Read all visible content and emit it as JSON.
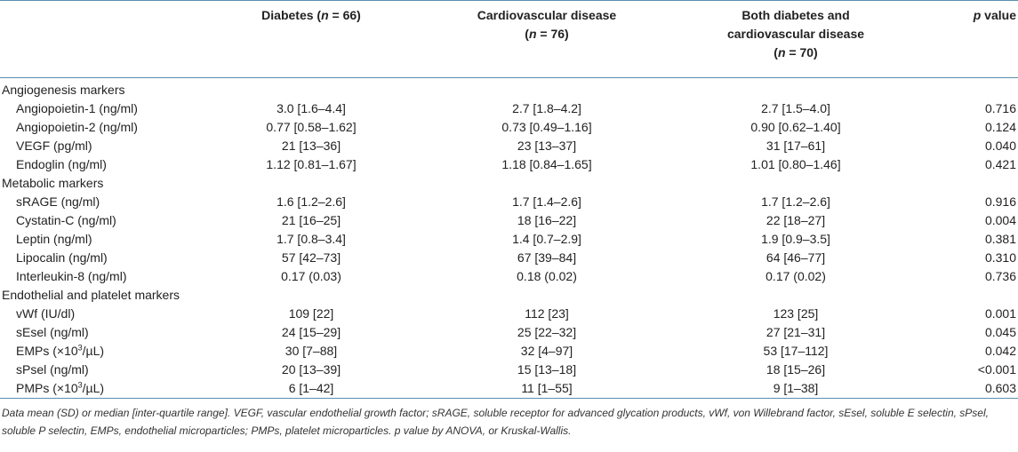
{
  "columns": {
    "diabetes_label": "Diabetes (",
    "diabetes_n": "n",
    "diabetes_count": " = 66)",
    "cvd_label": "Cardiovascular disease",
    "cvd_n": "n",
    "cvd_count": " = 76)",
    "both_line1": "Both diabetes and",
    "both_line2": "cardiovascular disease",
    "both_n": "n",
    "both_count": " = 70)",
    "p_letter": "p",
    "p_rest": " value"
  },
  "sections": [
    {
      "title": "Angiogenesis markers",
      "rows": [
        {
          "label": "Angiopoietin-1 (ng/ml)",
          "diabetes": "3.0 [1.6–4.4]",
          "cvd": "2.7 [1.8–4.2]",
          "both": "2.7 [1.5–4.0]",
          "p": "0.716"
        },
        {
          "label": "Angiopoietin-2 (ng/ml)",
          "diabetes": "0.77 [0.58–1.62]",
          "cvd": "0.73 [0.49–1.16]",
          "both": "0.90 [0.62–1.40]",
          "p": "0.124"
        },
        {
          "label": "VEGF (pg/ml)",
          "diabetes": "21 [13–36]",
          "cvd": "23 [13–37]",
          "both": "31 [17–61]",
          "p": "0.040"
        },
        {
          "label": "Endoglin (ng/ml)",
          "diabetes": "1.12 [0.81–1.67]",
          "cvd": "1.18 [0.84–1.65]",
          "both": "1.01 [0.80–1.46]",
          "p": "0.421"
        }
      ]
    },
    {
      "title": "Metabolic markers",
      "rows": [
        {
          "label": "sRAGE (ng/ml)",
          "diabetes": "1.6 [1.2–2.6]",
          "cvd": "1.7 [1.4–2.6]",
          "both": "1.7 [1.2–2.6]",
          "p": "0.916"
        },
        {
          "label": "Cystatin-C (ng/ml)",
          "diabetes": "21 [16–25]",
          "cvd": "18 [16–22]",
          "both": "22 [18–27]",
          "p": "0.004"
        },
        {
          "label": "Leptin (ng/ml)",
          "diabetes": "1.7 [0.8–3.4]",
          "cvd": "1.4 [0.7–2.9]",
          "both": "1.9 [0.9–3.5]",
          "p": "0.381"
        },
        {
          "label": "Lipocalin (ng/ml)",
          "diabetes": "57 [42–73]",
          "cvd": "67 [39–84]",
          "both": "64 [46–77]",
          "p": "0.310"
        },
        {
          "label": "Interleukin-8 (ng/ml)",
          "diabetes": "0.17 (0.03)",
          "cvd": "0.18 (0.02)",
          "both": "0.17 (0.02)",
          "p": "0.736"
        }
      ]
    },
    {
      "title": "Endothelial and platelet markers",
      "rows": [
        {
          "label": "vWf (IU/dl)",
          "diabetes": "109 [22]",
          "cvd": "112 [23]",
          "both": "123 [25]",
          "p": "0.001"
        },
        {
          "label": "sEsel (ng/ml)",
          "diabetes": "24 [15–29]",
          "cvd": "25 [22–32]",
          "both": "27 [21–31]",
          "p": "0.045"
        },
        {
          "label_pre": "EMPs (×10",
          "label_sup": "3",
          "label_post": "/µL)",
          "diabetes": "30 [7–88]",
          "cvd": "32 [4–97]",
          "both": "53 [17–112]",
          "p": "0.042"
        },
        {
          "label": "sPsel (ng/ml)",
          "diabetes": "20 [13–39]",
          "cvd": "15 [13–18]",
          "both": "18 [15–26]",
          "p": "<0.001"
        },
        {
          "label_pre": "PMPs (×10",
          "label_sup": "3",
          "label_post": "/µL)",
          "diabetes": "6 [1–42]",
          "cvd": "11 [1–55]",
          "both": "9 [1–38]",
          "p": "0.603"
        }
      ]
    }
  ],
  "footnote": "Data mean (SD) or median [inter-quartile range]. VEGF, vascular endothelial growth factor; sRAGE, soluble receptor for advanced glycation products, vWf, von Willebrand factor, sEsel, soluble E selectin, sPsel, soluble P selectin, EMPs, endothelial microparticles; PMPs, platelet microparticles. p value by ANOVA, or Kruskal-Wallis."
}
